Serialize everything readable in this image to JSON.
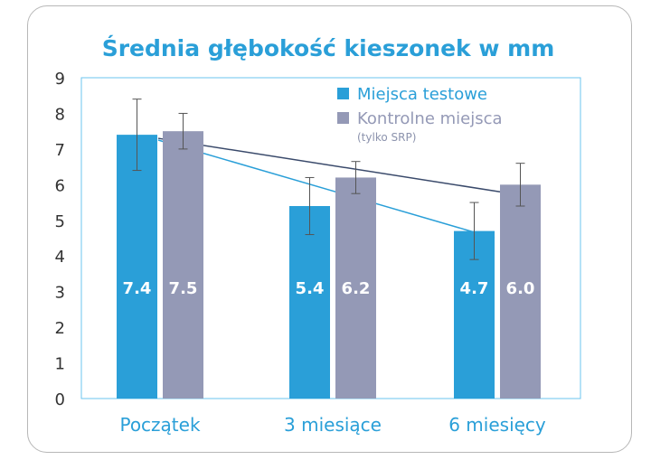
{
  "colors": {
    "test": "#2a9fd8",
    "control": "#9499b6",
    "trend_test": "#2a9fd8",
    "trend_control": "#3a4a6b",
    "axis_frame": "#6bc4ef",
    "error_bar": "#555555"
  },
  "chart_data": {
    "type": "bar",
    "title": "Średnia głębokość kieszonek w mm",
    "xlabel": "",
    "ylabel": "",
    "ylim": [
      0,
      9
    ],
    "yticks": [
      "0",
      "1",
      "2",
      "3",
      "4",
      "5",
      "6",
      "7",
      "8",
      "9"
    ],
    "grid": false,
    "legend_position": "top-right",
    "categories": [
      "Początek",
      "3 miesiące",
      "6 miesięcy"
    ],
    "series": [
      {
        "name": "Miejsca testowe",
        "key": "test",
        "values": [
          7.4,
          5.4,
          4.7
        ],
        "value_labels": [
          "7.4",
          "5.4",
          "4.7"
        ],
        "errors": [
          1.0,
          0.8,
          0.8
        ]
      },
      {
        "name": "Kontrolne miejsca",
        "subname": "(tylko SRP)",
        "key": "control",
        "values": [
          7.5,
          6.2,
          6.0
        ],
        "value_labels": [
          "7.5",
          "6.2",
          "6.0"
        ],
        "errors": [
          0.5,
          0.45,
          0.6
        ]
      }
    ],
    "trend_lines": [
      {
        "series": "test",
        "from": 7.25,
        "to": 4.5
      },
      {
        "series": "control",
        "from": 7.3,
        "to": 5.8
      }
    ]
  }
}
